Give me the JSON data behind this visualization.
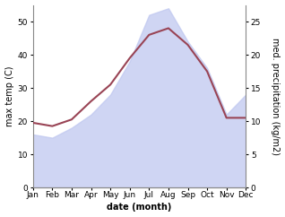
{
  "months": [
    "Jan",
    "Feb",
    "Mar",
    "Apr",
    "May",
    "Jun",
    "Jul",
    "Aug",
    "Sep",
    "Oct",
    "Nov",
    "Dec"
  ],
  "temp_max": [
    19.5,
    18.5,
    20.5,
    26,
    31,
    39,
    46,
    48,
    43,
    35,
    21,
    21
  ],
  "precipitation": [
    8,
    7.5,
    9,
    11,
    14,
    19,
    26,
    27,
    22,
    18,
    11,
    14
  ],
  "temp_ylim": [
    0,
    55
  ],
  "precip_ylim": [
    0,
    27.5
  ],
  "temp_yticks": [
    0,
    10,
    20,
    30,
    40,
    50
  ],
  "precip_yticks": [
    0,
    5,
    10,
    15,
    20,
    25
  ],
  "fill_color": "#c0c8f0",
  "fill_alpha": 0.75,
  "line_color": "#994455",
  "line_width": 1.5,
  "xlabel": "date (month)",
  "ylabel_left": "max temp (C)",
  "ylabel_right": "med. precipitation (kg/m2)",
  "bg_color": "#ffffff",
  "tick_fontsize": 6.5,
  "label_fontsize": 7.0,
  "ylabel_fontsize": 7.0
}
